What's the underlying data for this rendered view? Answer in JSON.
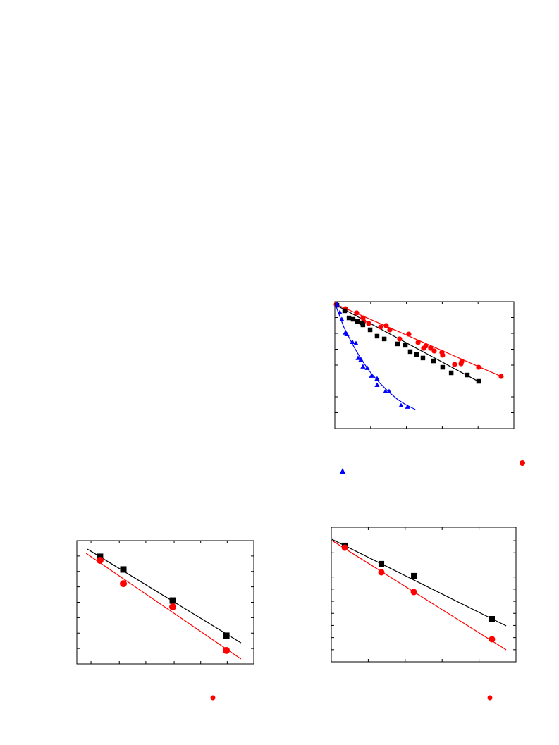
{
  "chart_data": [
    {
      "type": "scatter",
      "xlim": [
        0,
        100
      ],
      "ylim": [
        0,
        100
      ],
      "xticks": [
        0,
        20,
        40,
        60,
        80,
        100
      ],
      "yticks": [
        0,
        12.5,
        25,
        37.5,
        50,
        62.5,
        75,
        87.5,
        100
      ],
      "series": [
        {
          "color": "#ff0000",
          "marker": "circle",
          "x": [
            0.8,
            5.9,
            12.2,
            15.7,
            16.1,
            18.9,
            25.6,
            28.7,
            30.7,
            36.2,
            41.3,
            46.5,
            49.6,
            50.8,
            53.5,
            55.5,
            59.8,
            60.2,
            66.9,
            70.9,
            70.5,
            80.3,
            92.9
          ],
          "values": [
            97.8,
            94.4,
            91.1,
            87.2,
            84.4,
            82.8,
            80,
            81.1,
            77.8,
            70.6,
            74.4,
            67.8,
            63.3,
            65,
            63.3,
            61.1,
            60,
            57.8,
            50.6,
            52.8,
            51.1,
            48.3,
            41.1
          ]
        },
        {
          "color": "#000000",
          "marker": "square",
          "x": [
            1.2,
            5.5,
            7.9,
            10.2,
            12.6,
            15,
            15.7,
            19.7,
            23.6,
            27.6,
            35,
            39.4,
            42.1,
            45.7,
            49.2,
            55.1,
            60.2,
            65,
            74,
            80.3
          ],
          "values": [
            97.2,
            92.8,
            87.2,
            86.1,
            84.4,
            83.3,
            81.7,
            77.8,
            72.8,
            70.6,
            66.7,
            65.6,
            60.6,
            58.3,
            55.6,
            53.3,
            48.3,
            43.9,
            42.2,
            37.2
          ]
        },
        {
          "color": "#0000ff",
          "marker": "triangle",
          "x": [
            1.2,
            2.8,
            3.9,
            5.9,
            6.7,
            9.8,
            11.8,
            13,
            14.6,
            15.7,
            18.1,
            20.5,
            23.6,
            23.6,
            28.3,
            30.3,
            37,
            40.6
          ],
          "values": [
            97.8,
            91.7,
            86.1,
            75.6,
            74.4,
            68.3,
            67.2,
            55.6,
            54.4,
            48.9,
            47.8,
            41.7,
            39.4,
            34.4,
            29.4,
            29.4,
            18.3,
            17.2
          ]
        }
      ],
      "fits": [
        {
          "color": "#ff0000",
          "x": [
            0,
            93.7
          ],
          "values": [
            98.3,
            40.6
          ]
        },
        {
          "color": "#000000",
          "x": [
            0,
            80.7
          ],
          "values": [
            97.8,
            36.7
          ]
        },
        {
          "color": "#0000ff",
          "x": [
            0,
            5,
            10,
            15,
            20,
            25,
            30,
            35,
            40,
            45
          ],
          "values": [
            98.9,
            80,
            66,
            54,
            44,
            36,
            29,
            23,
            18.5,
            15
          ]
        }
      ]
    },
    {
      "type": "scatter",
      "xlim": [
        0,
        100
      ],
      "ylim": [
        0,
        100
      ],
      "xticks": [
        8,
        24,
        39,
        55,
        70,
        85
      ],
      "yticks": [
        12.5,
        25,
        37.5,
        50,
        62.5,
        75,
        87.5
      ],
      "series": [
        {
          "color": "#000000",
          "marker": "square",
          "x": [
            13.1,
            26.3,
            54.2,
            84.5
          ],
          "values": [
            86.9,
            76.6,
            51.4,
            22.9
          ]
        },
        {
          "color": "#ff0000",
          "marker": "circle",
          "x": [
            13.1,
            26.3,
            54.2,
            84.5
          ],
          "values": [
            84,
            65.1,
            46.3,
            10.9
          ]
        }
      ],
      "fits": [
        {
          "color": "#000000",
          "x": [
            6,
            92.8
          ],
          "values": [
            93.1,
            17.1
          ]
        },
        {
          "color": "#ff0000",
          "x": [
            5.2,
            92.8
          ],
          "values": [
            89.7,
            4
          ]
        }
      ]
    },
    {
      "type": "scatter",
      "xlim": [
        0,
        100
      ],
      "ylim": [
        0,
        100
      ],
      "xticks": [
        0,
        20,
        40,
        60,
        80,
        100
      ],
      "yticks": [
        9,
        18,
        27,
        36,
        45,
        54,
        63,
        72,
        81,
        90
      ],
      "series": [
        {
          "color": "#000000",
          "marker": "square",
          "x": [
            7.3,
            27.1,
            44.7,
            87
          ],
          "values": [
            86.4,
            72.8,
            63.9,
            31.9
          ]
        },
        {
          "color": "#ff0000",
          "marker": "circle",
          "x": [
            7.3,
            27.1,
            44.7,
            87
          ],
          "values": [
            84.8,
            66.5,
            51.8,
            16.8
          ]
        }
      ],
      "fits": [
        {
          "color": "#000000",
          "x": [
            0.4,
            94.7
          ],
          "values": [
            91,
            26.7
          ]
        },
        {
          "color": "#ff0000",
          "x": [
            0.4,
            94.7
          ],
          "values": [
            90.1,
            8.9
          ]
        }
      ]
    }
  ]
}
